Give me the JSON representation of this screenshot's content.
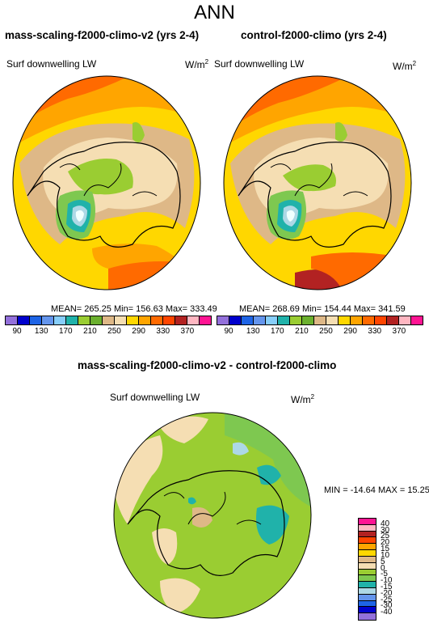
{
  "main_title": "ANN",
  "panels": [
    {
      "title": "mass-scaling-f2000-climo-v2 (yrs 2-4)",
      "variable": "Surf downwelling LW",
      "unit": "W/m",
      "unit_sup": "2",
      "stats": "MEAN= 265.25  Min= 156.63  Max= 333.49"
    },
    {
      "title": "control-f2000-climo (yrs 2-4)",
      "variable": "Surf downwelling LW",
      "unit": "W/m",
      "unit_sup": "2",
      "stats": "MEAN= 268.69  Min= 154.44  Max= 341.59"
    },
    {
      "title": "mass-scaling-f2000-climo-v2 - control-f2000-climo",
      "variable": "Surf downwelling LW",
      "unit": "W/m",
      "unit_sup": "2",
      "stats": "MIN = -14.64 MAX =  15.25"
    }
  ],
  "colorbar_top": {
    "labels": [
      "90",
      "130",
      "170",
      "210",
      "250",
      "290",
      "330",
      "370"
    ],
    "colors": [
      "#9370db",
      "#0000cd",
      "#1e64e6",
      "#6495ed",
      "#87cefa",
      "#20b2aa",
      "#9acd32",
      "#6bb02e",
      "#deb887",
      "#f5deb3",
      "#ffd700",
      "#ffa500",
      "#ff6a00",
      "#ff4500",
      "#b22222",
      "#ffb6c1",
      "#ff1493"
    ]
  },
  "colorbar_diff": {
    "labels": [
      "40",
      "30",
      "25",
      "20",
      "15",
      "10",
      "5",
      "0",
      "-5",
      "-10",
      "-15",
      "-20",
      "-25",
      "-30",
      "-40"
    ],
    "colors": [
      "#ff1493",
      "#ffb6c1",
      "#b22222",
      "#ff4500",
      "#ffa500",
      "#ffd700",
      "#deb887",
      "#f5deb3",
      "#9acd32",
      "#7ec850",
      "#20b2aa",
      "#add8e6",
      "#6495ed",
      "#1e64e6",
      "#0000cd",
      "#9370db"
    ]
  }
}
